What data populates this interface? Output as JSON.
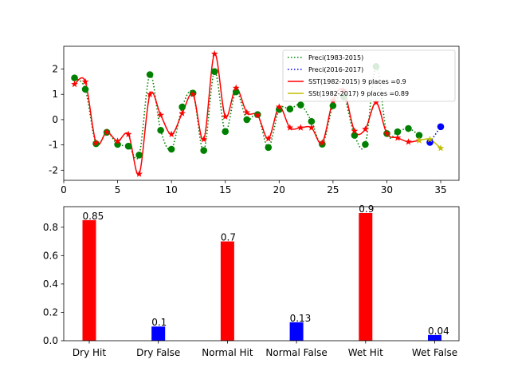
{
  "chart_data": [
    {
      "type": "line",
      "xlim": [
        0,
        36.7
      ],
      "ylim": [
        -2.4,
        2.9
      ],
      "x_ticks": [
        0,
        5,
        10,
        15,
        20,
        25,
        30,
        35
      ],
      "y_ticks": [
        -2,
        -1,
        0,
        1,
        2
      ],
      "grid": false,
      "legend_position": "top-right",
      "series": [
        {
          "name": " Preci(1983-2015)",
          "color": "#008000",
          "line_style": "dotted",
          "marker": "circle",
          "x": [
            1,
            2,
            3,
            4,
            5,
            6,
            7,
            8,
            9,
            10,
            11,
            12,
            13,
            14,
            15,
            16,
            17,
            18,
            19,
            20,
            21,
            22,
            23,
            24,
            25,
            26,
            27,
            28,
            29,
            30,
            31,
            32,
            33
          ],
          "y": [
            1.65,
            1.2,
            -0.95,
            -0.5,
            -0.98,
            -1.05,
            -1.4,
            1.78,
            -0.42,
            -1.17,
            0.5,
            1.05,
            -1.22,
            1.9,
            -0.47,
            1.1,
            0,
            0.2,
            -1.1,
            0.4,
            0.42,
            0.58,
            -0.07,
            -0.97,
            0.55,
            0.9,
            -0.62,
            -0.98,
            2.1,
            -0.55,
            -0.48,
            -0.35,
            -0.62
          ]
        },
        {
          "name": "Preci(2016-2017)",
          "color": "#0000ff",
          "line_style": "dotted",
          "marker": "circle",
          "x": [
            34,
            35
          ],
          "y": [
            -0.9,
            -0.28
          ]
        },
        {
          "name": "SST(1982-2015) 9 places =0.9",
          "color": "#ff0000",
          "line_style": "solid",
          "marker": "star",
          "x": [
            1,
            2,
            3,
            4,
            5,
            6,
            7,
            8,
            9,
            10,
            11,
            12,
            13,
            14,
            15,
            16,
            17,
            18,
            19,
            20,
            21,
            22,
            23,
            24,
            25,
            26,
            27,
            28,
            29,
            30,
            31,
            32,
            33
          ],
          "y": [
            1.4,
            1.5,
            -0.92,
            -0.5,
            -0.85,
            -0.58,
            -2.15,
            1.0,
            0.18,
            -0.58,
            0.25,
            1.0,
            -0.78,
            2.6,
            0.12,
            1.25,
            0.28,
            0.18,
            -0.75,
            0.5,
            -0.32,
            -0.32,
            -0.32,
            -0.92,
            0.75,
            1.15,
            -0.45,
            -0.38,
            0.68,
            -0.55,
            -0.72,
            -0.88,
            -0.82
          ]
        },
        {
          "name": "SSt(1982-2017) 9 places =0.89",
          "color": "#bfbf00",
          "line_style": "solid",
          "marker": "star",
          "x": [
            33,
            34,
            35
          ],
          "y": [
            -0.82,
            -0.78,
            -1.13
          ]
        }
      ]
    },
    {
      "type": "bar",
      "categories": [
        "Dry Hit",
        "Dry False",
        "Normal Hit",
        "Normal False",
        "Wet Hit",
        "Wet False"
      ],
      "values": [
        0.85,
        0.1,
        0.7,
        0.13,
        0.9,
        0.04
      ],
      "value_labels": [
        "0.85",
        "0.1",
        "0.7",
        "0.13",
        "0.9",
        "0.04"
      ],
      "colors": [
        "#ff0000",
        "#0000ff",
        "#ff0000",
        "#0000ff",
        "#ff0000",
        "#0000ff"
      ],
      "ylim": [
        0,
        0.945
      ],
      "y_ticks": [
        0.0,
        0.2,
        0.4,
        0.6,
        0.8
      ],
      "grid": false
    }
  ]
}
